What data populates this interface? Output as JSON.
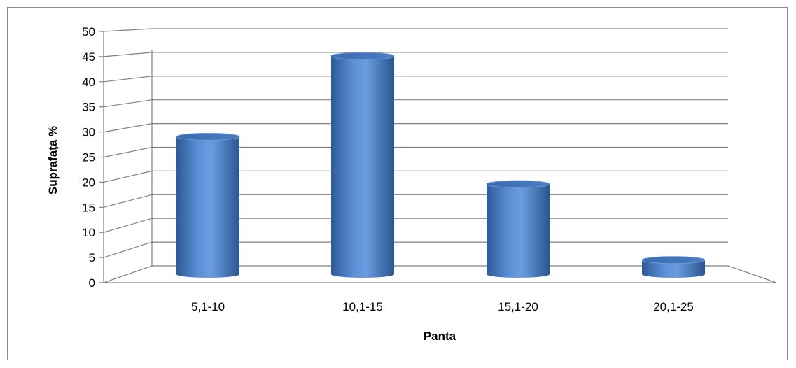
{
  "chart_data": {
    "type": "bar",
    "style": "3d-cylinder",
    "categories": [
      "5,1-10",
      "10,1-15",
      "15,1-20",
      "20,1-25"
    ],
    "values": [
      29,
      46,
      19,
      3
    ],
    "xlabel": "Panta",
    "ylabel": "Suprafața %",
    "ylim": [
      0,
      50
    ],
    "yticks": [
      0,
      5,
      10,
      15,
      20,
      25,
      30,
      35,
      40,
      45,
      50
    ],
    "grid": true,
    "legend": "none",
    "bar_color": "#4F81BD"
  }
}
